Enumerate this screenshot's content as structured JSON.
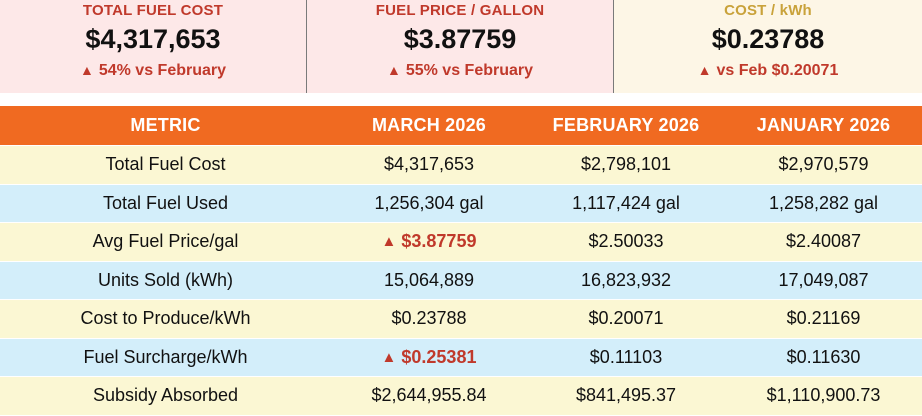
{
  "kpis": [
    {
      "label": "TOTAL FUEL COST",
      "value": "$4,317,653",
      "delta": "54% vs February"
    },
    {
      "label": "FUEL PRICE / GALLON",
      "value": "$3.87759",
      "delta": "55% vs February"
    },
    {
      "label": "COST / kWh",
      "value": "$0.23788",
      "delta": "vs Feb $0.20071"
    }
  ],
  "icons": {
    "increase": "up-triangle-icon",
    "glyph": "▲"
  },
  "colors": {
    "header": "#f06a21",
    "alert_red": "#c0392b",
    "row_yellow": "#fbf7d3",
    "row_blue": "#d3eefa"
  },
  "table": {
    "headers": [
      "METRIC",
      "MARCH 2026",
      "FEBRUARY 2026",
      "JANUARY 2026"
    ],
    "rows": [
      {
        "metric": "Total Fuel Cost",
        "march": "$4,317,653",
        "february": "$2,798,101",
        "january": "$2,970,579"
      },
      {
        "metric": "Total Fuel Used",
        "march": "1,256,304 gal",
        "february": "1,117,424 gal",
        "january": "1,258,282 gal"
      },
      {
        "metric": "Avg Fuel Price/gal",
        "march": "$3.87759",
        "february": "$2.50033",
        "january": "$2.40087"
      },
      {
        "metric": "Units Sold (kWh)",
        "march": "15,064,889",
        "february": "16,823,932",
        "january": "17,049,087"
      },
      {
        "metric": "Cost to Produce/kWh",
        "march": "$0.23788",
        "february": "$0.20071",
        "january": "$0.21169"
      },
      {
        "metric": "Fuel Surcharge/kWh",
        "march": "$0.25381",
        "february": "$0.11103",
        "january": "$0.11630"
      },
      {
        "metric": "Subsidy Absorbed",
        "march": "$2,644,955.84",
        "february": "$841,495.37",
        "january": "$1,110,900.73"
      }
    ]
  }
}
